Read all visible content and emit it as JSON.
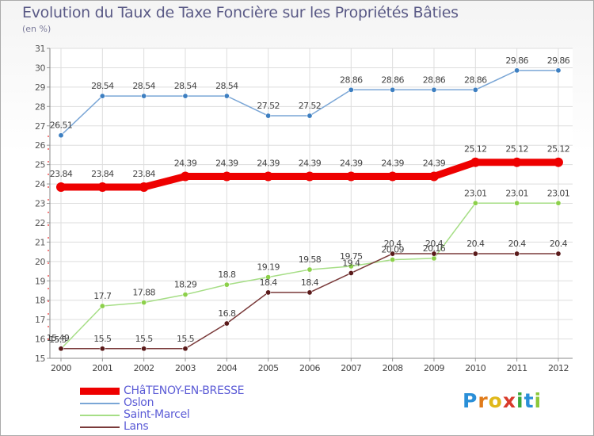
{
  "chart_data": {
    "type": "line",
    "title": "Evolution du Taux de Taxe Foncière sur les Propriétés Bâties",
    "subtitle": "(en %)",
    "categories": [
      "2000",
      "2001",
      "2002",
      "2003",
      "2004",
      "2005",
      "2006",
      "2007",
      "2008",
      "2009",
      "2010",
      "2011",
      "2012"
    ],
    "ylim": [
      15,
      31
    ],
    "yticks": [
      15,
      16,
      17,
      18,
      19,
      20,
      21,
      22,
      23,
      24,
      25,
      26,
      27,
      28,
      29,
      30,
      31
    ],
    "grid": true,
    "legend_position": "bottom-left",
    "series": [
      {
        "name": "CHâTENOY-EN-BRESSE",
        "color": "#ee0000",
        "marker": "#ee0000",
        "thick": true,
        "values": [
          23.84,
          23.84,
          23.84,
          24.39,
          24.39,
          24.39,
          24.39,
          24.39,
          24.39,
          24.39,
          25.12,
          25.12,
          25.12
        ],
        "labels": [
          "23.84",
          "23.84",
          "23.84",
          "24.39",
          "24.39",
          "24.39",
          "24.39",
          "24.39",
          "24.39",
          "24.39",
          "25.12",
          "25.12",
          "25.12"
        ]
      },
      {
        "name": "Oslon",
        "color": "#7aa6d6",
        "marker": "#3d7fc1",
        "thick": false,
        "values": [
          26.51,
          28.54,
          28.54,
          28.54,
          28.54,
          27.52,
          27.52,
          28.86,
          28.86,
          28.86,
          28.86,
          29.86,
          29.86
        ],
        "labels": [
          "26.51",
          "28.54",
          "28.54",
          "28.54",
          "28.54",
          "27.52",
          "27.52",
          "28.86",
          "28.86",
          "28.86",
          "28.86",
          "29.86",
          "29.86"
        ]
      },
      {
        "name": "Saint-Marcel",
        "color": "#a6de86",
        "marker": "#8cd04a",
        "thick": false,
        "values": [
          15.49,
          17.7,
          17.88,
          18.29,
          18.8,
          19.19,
          19.58,
          19.75,
          20.09,
          20.16,
          23.01,
          23.01,
          23.01
        ],
        "labels": [
          "15.49",
          "17.7",
          "17.88",
          "18.29",
          "18.8",
          "19.19",
          "19.58",
          "19.75",
          "20.09",
          "20.16",
          "23.01",
          "23.01",
          "23.01"
        ]
      },
      {
        "name": "Lans",
        "color": "#7a3a3a",
        "marker": "#5a1a1a",
        "thick": false,
        "values": [
          15.5,
          15.5,
          15.5,
          15.5,
          16.8,
          18.4,
          18.4,
          19.4,
          20.4,
          20.4,
          20.4,
          20.4,
          20.4
        ],
        "labels": [
          "15.5",
          "15.5",
          "15.5",
          "15.5",
          "16.8",
          "18.4",
          "18.4",
          "19.4",
          "20.4",
          "20.4",
          "20.4",
          "20.4",
          "20.4"
        ]
      }
    ]
  },
  "logo": {
    "text": "Proxiti",
    "letters": [
      "P",
      "r",
      "o",
      "x",
      "i",
      "t",
      "i"
    ],
    "colors": [
      "#2a8fd8",
      "#e07b1a",
      "#e0b81a",
      "#d83a2a",
      "#3aa83a",
      "#2a8fd8",
      "#8cc83a"
    ]
  }
}
